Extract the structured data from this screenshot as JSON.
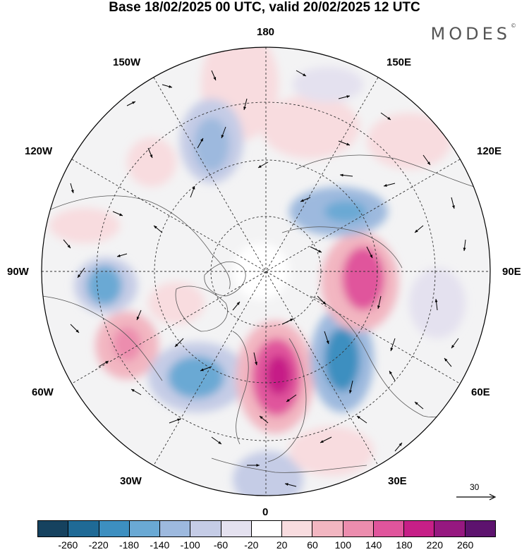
{
  "title": "Base 18/02/2025 00 UTC, valid 20/02/2025 12 UTC",
  "logo": "MODES",
  "logo_mark": "©",
  "longitude_labels": {
    "north": "180",
    "south": "0",
    "west": "90W",
    "east": "90E",
    "upper_left_1": "150W",
    "upper_left_2": "120W",
    "upper_right_1": "150E",
    "upper_right_2": "120E",
    "lower_left_1": "60W",
    "lower_left_2": "30W",
    "lower_right_1": "60E",
    "lower_right_2": "30E"
  },
  "reference_vector": {
    "label": "30"
  },
  "colorbar": {
    "colors": [
      "#16425f",
      "#1f6a96",
      "#3d8fc0",
      "#6aa9d4",
      "#9db9de",
      "#c5cce6",
      "#e4e1ef",
      "#ffffff",
      "#f8dcdf",
      "#f2b6c1",
      "#ec8dae",
      "#e0559c",
      "#c61f87",
      "#961880",
      "#5d136e"
    ],
    "ticks": [
      "-260",
      "-220",
      "-180",
      "-140",
      "-100",
      "-60",
      "-20",
      "20",
      "60",
      "100",
      "140",
      "180",
      "220",
      "260"
    ]
  }
}
